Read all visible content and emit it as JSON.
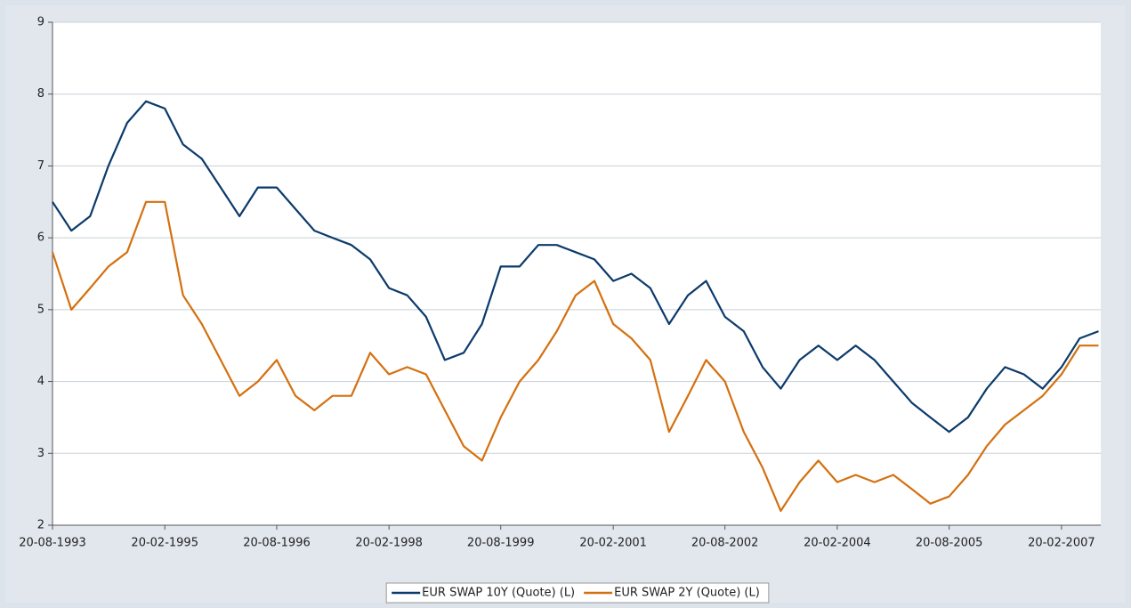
{
  "chart_data": {
    "type": "line",
    "x": [
      "20-08-1993",
      "20-11-1993",
      "20-02-1994",
      "20-05-1994",
      "20-08-1994",
      "20-11-1994",
      "20-02-1995",
      "20-05-1995",
      "20-08-1995",
      "20-11-1995",
      "20-02-1996",
      "20-05-1996",
      "20-08-1996",
      "20-11-1996",
      "20-02-1997",
      "20-05-1997",
      "20-08-1997",
      "20-11-1997",
      "20-02-1998",
      "20-05-1998",
      "20-08-1998",
      "20-11-1998",
      "20-02-1999",
      "20-05-1999",
      "20-08-1999",
      "20-11-1999",
      "20-02-2000",
      "20-05-2000",
      "20-08-2000",
      "20-11-2000",
      "20-02-2001",
      "20-05-2001",
      "20-08-2001",
      "20-11-2001",
      "20-02-2002",
      "20-05-2002",
      "20-08-2002",
      "20-11-2002",
      "20-02-2003",
      "20-05-2003",
      "20-08-2003",
      "20-11-2003",
      "20-02-2004",
      "20-05-2004",
      "20-08-2004",
      "20-11-2004",
      "20-02-2005",
      "20-05-2005",
      "20-08-2005",
      "20-11-2005",
      "20-02-2006",
      "20-05-2006",
      "20-08-2006",
      "20-11-2006",
      "20-02-2007",
      "20-05-2007",
      "20-08-2007"
    ],
    "series": [
      {
        "name": "EUR SWAP 10Y (Quote) (L)",
        "color": "#0b3a6b",
        "values": [
          6.5,
          6.1,
          6.3,
          7.0,
          7.6,
          7.9,
          7.8,
          7.3,
          7.1,
          6.7,
          6.3,
          6.7,
          6.7,
          6.4,
          6.1,
          6.0,
          5.9,
          5.7,
          5.3,
          5.2,
          4.9,
          4.3,
          4.4,
          4.8,
          5.6,
          5.6,
          5.9,
          5.9,
          5.8,
          5.7,
          5.4,
          5.5,
          5.3,
          4.8,
          5.2,
          5.4,
          4.9,
          4.7,
          4.2,
          3.9,
          4.3,
          4.5,
          4.3,
          4.5,
          4.3,
          4.0,
          3.7,
          3.5,
          3.3,
          3.5,
          3.9,
          4.2,
          4.1,
          3.9,
          4.2,
          4.6,
          4.7
        ]
      },
      {
        "name": "EUR SWAP 2Y (Quote) (L)",
        "color": "#d4700f",
        "values": [
          5.8,
          5.0,
          5.3,
          5.6,
          5.8,
          6.5,
          6.5,
          5.2,
          4.8,
          4.3,
          3.8,
          4.0,
          4.3,
          3.8,
          3.6,
          3.8,
          3.8,
          4.4,
          4.1,
          4.2,
          4.1,
          3.6,
          3.1,
          2.9,
          3.5,
          4.0,
          4.3,
          4.7,
          5.2,
          5.4,
          4.8,
          4.6,
          4.3,
          3.3,
          3.8,
          4.3,
          4.0,
          3.3,
          2.8,
          2.2,
          2.6,
          2.9,
          2.6,
          2.7,
          2.6,
          2.7,
          2.5,
          2.3,
          2.4,
          2.7,
          3.1,
          3.4,
          3.6,
          3.8,
          4.1,
          4.5,
          4.5
        ]
      }
    ],
    "xlim": [
      "20-08-1993",
      "31-08-2007"
    ],
    "xticks": [
      "20-08-1993",
      "20-02-1995",
      "20-08-1996",
      "20-02-1998",
      "20-08-1999",
      "20-02-2001",
      "20-08-2002",
      "20-02-2004",
      "20-08-2005",
      "20-02-2007"
    ],
    "ylim": [
      2,
      9
    ],
    "yticks": [
      2,
      3,
      4,
      5,
      6,
      7,
      8,
      9
    ],
    "grid": true,
    "legend": "bottom"
  }
}
